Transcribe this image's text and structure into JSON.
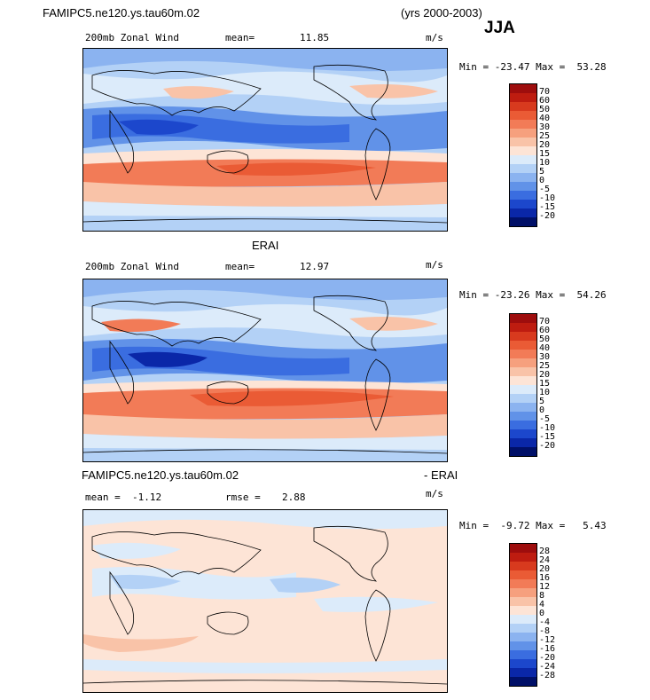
{
  "header": {
    "case_name": "FAMIPC5.ne120.ys.tau60m.02",
    "years": "(yrs 2000-2003)",
    "season": "JJA"
  },
  "panels": [
    {
      "id": "model",
      "title": "",
      "field_label": "200mb Zonal Wind",
      "stat_label": "mean=",
      "stat_value": "11.85",
      "units": "m/s",
      "minmax": "Min = -23.47 Max =  53.28",
      "colorbar_levels": [
        "70",
        "60",
        "50",
        "40",
        "30",
        "25",
        "20",
        "15",
        "10",
        "5",
        "0",
        "-5",
        "-10",
        "-15",
        "-20"
      ],
      "colorbar_colors": [
        "#9e0d0d",
        "#be1c10",
        "#d83a1e",
        "#ea5b35",
        "#f27b57",
        "#f6a07e",
        "#f9c3a8",
        "#fde4d6",
        "#dcebfa",
        "#b3d1f6",
        "#8bb3f0",
        "#6192e8",
        "#3a6de0",
        "#1c47cc",
        "#0a27a8",
        "#001068"
      ]
    },
    {
      "id": "obs",
      "title": "ERAI",
      "field_label": "200mb Zonal Wind",
      "stat_label": "mean=",
      "stat_value": "12.97",
      "units": "m/s",
      "minmax": "Min = -23.26 Max =  54.26",
      "colorbar_levels": [
        "70",
        "60",
        "50",
        "40",
        "30",
        "25",
        "20",
        "15",
        "10",
        "5",
        "0",
        "-5",
        "-10",
        "-15",
        "-20"
      ],
      "colorbar_colors": [
        "#9e0d0d",
        "#be1c10",
        "#d83a1e",
        "#ea5b35",
        "#f27b57",
        "#f6a07e",
        "#f9c3a8",
        "#fde4d6",
        "#dcebfa",
        "#b3d1f6",
        "#8bb3f0",
        "#6192e8",
        "#3a6de0",
        "#1c47cc",
        "#0a27a8",
        "#001068"
      ]
    },
    {
      "id": "diff",
      "title_left": "FAMIPC5.ne120.ys.tau60m.02",
      "title_right": "- ERAI",
      "field_label": "mean =  -1.12",
      "stat_label": "rmse =",
      "stat_value": "2.88",
      "units": "m/s",
      "minmax": "Min =  -9.72 Max =   5.43",
      "colorbar_levels": [
        "28",
        "24",
        "20",
        "16",
        "12",
        "8",
        "4",
        "0",
        "-4",
        "-8",
        "-12",
        "-16",
        "-20",
        "-24",
        "-28"
      ],
      "colorbar_colors": [
        "#9e0d0d",
        "#be1c10",
        "#d83a1e",
        "#ea5b35",
        "#f27b57",
        "#f6a07e",
        "#f9c3a8",
        "#fde4d6",
        "#dcebfa",
        "#b3d1f6",
        "#8bb3f0",
        "#6192e8",
        "#3a6de0",
        "#1c47cc",
        "#0a27a8",
        "#001068"
      ]
    }
  ]
}
